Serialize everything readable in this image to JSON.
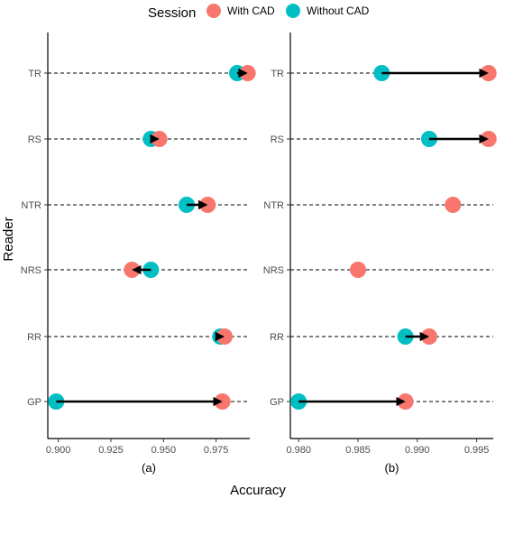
{
  "chart_data": {
    "type": "scatter",
    "legend": {
      "title": "Session",
      "position": "top",
      "entries": [
        {
          "label": "With CAD",
          "color": "#F8766D"
        },
        {
          "label": "Without CAD",
          "color": "#00BFC4"
        }
      ]
    },
    "ylabel": "Reader",
    "xlabel": "Accuracy",
    "readers": [
      "TR",
      "RS",
      "NTR",
      "NRS",
      "RR",
      "GP"
    ],
    "panels": [
      {
        "sublabel": "(a)",
        "xlim": [
          0.895,
          0.991
        ],
        "xticks": [
          0.9,
          0.925,
          0.95,
          0.975
        ],
        "xtick_labels": [
          "0.900",
          "0.925",
          "0.950",
          "0.975"
        ],
        "series": [
          {
            "name": "With CAD",
            "values": [
              0.99,
              0.948,
              0.971,
              0.935,
              0.979,
              0.978
            ]
          },
          {
            "name": "Without CAD",
            "values": [
              0.985,
              0.944,
              0.961,
              0.944,
              0.977,
              0.899
            ]
          }
        ]
      },
      {
        "sublabel": "(b)",
        "xlim": [
          0.9793,
          0.9964
        ],
        "xticks": [
          0.98,
          0.985,
          0.99,
          0.995
        ],
        "xtick_labels": [
          "0.980",
          "0.985",
          "0.990",
          "0.995"
        ],
        "series": [
          {
            "name": "With CAD",
            "values": [
              0.996,
              0.996,
              0.993,
              0.985,
              0.991,
              0.989
            ]
          },
          {
            "name": "Without CAD",
            "values": [
              0.987,
              0.991,
              null,
              null,
              0.989,
              0.98
            ]
          }
        ]
      }
    ]
  }
}
